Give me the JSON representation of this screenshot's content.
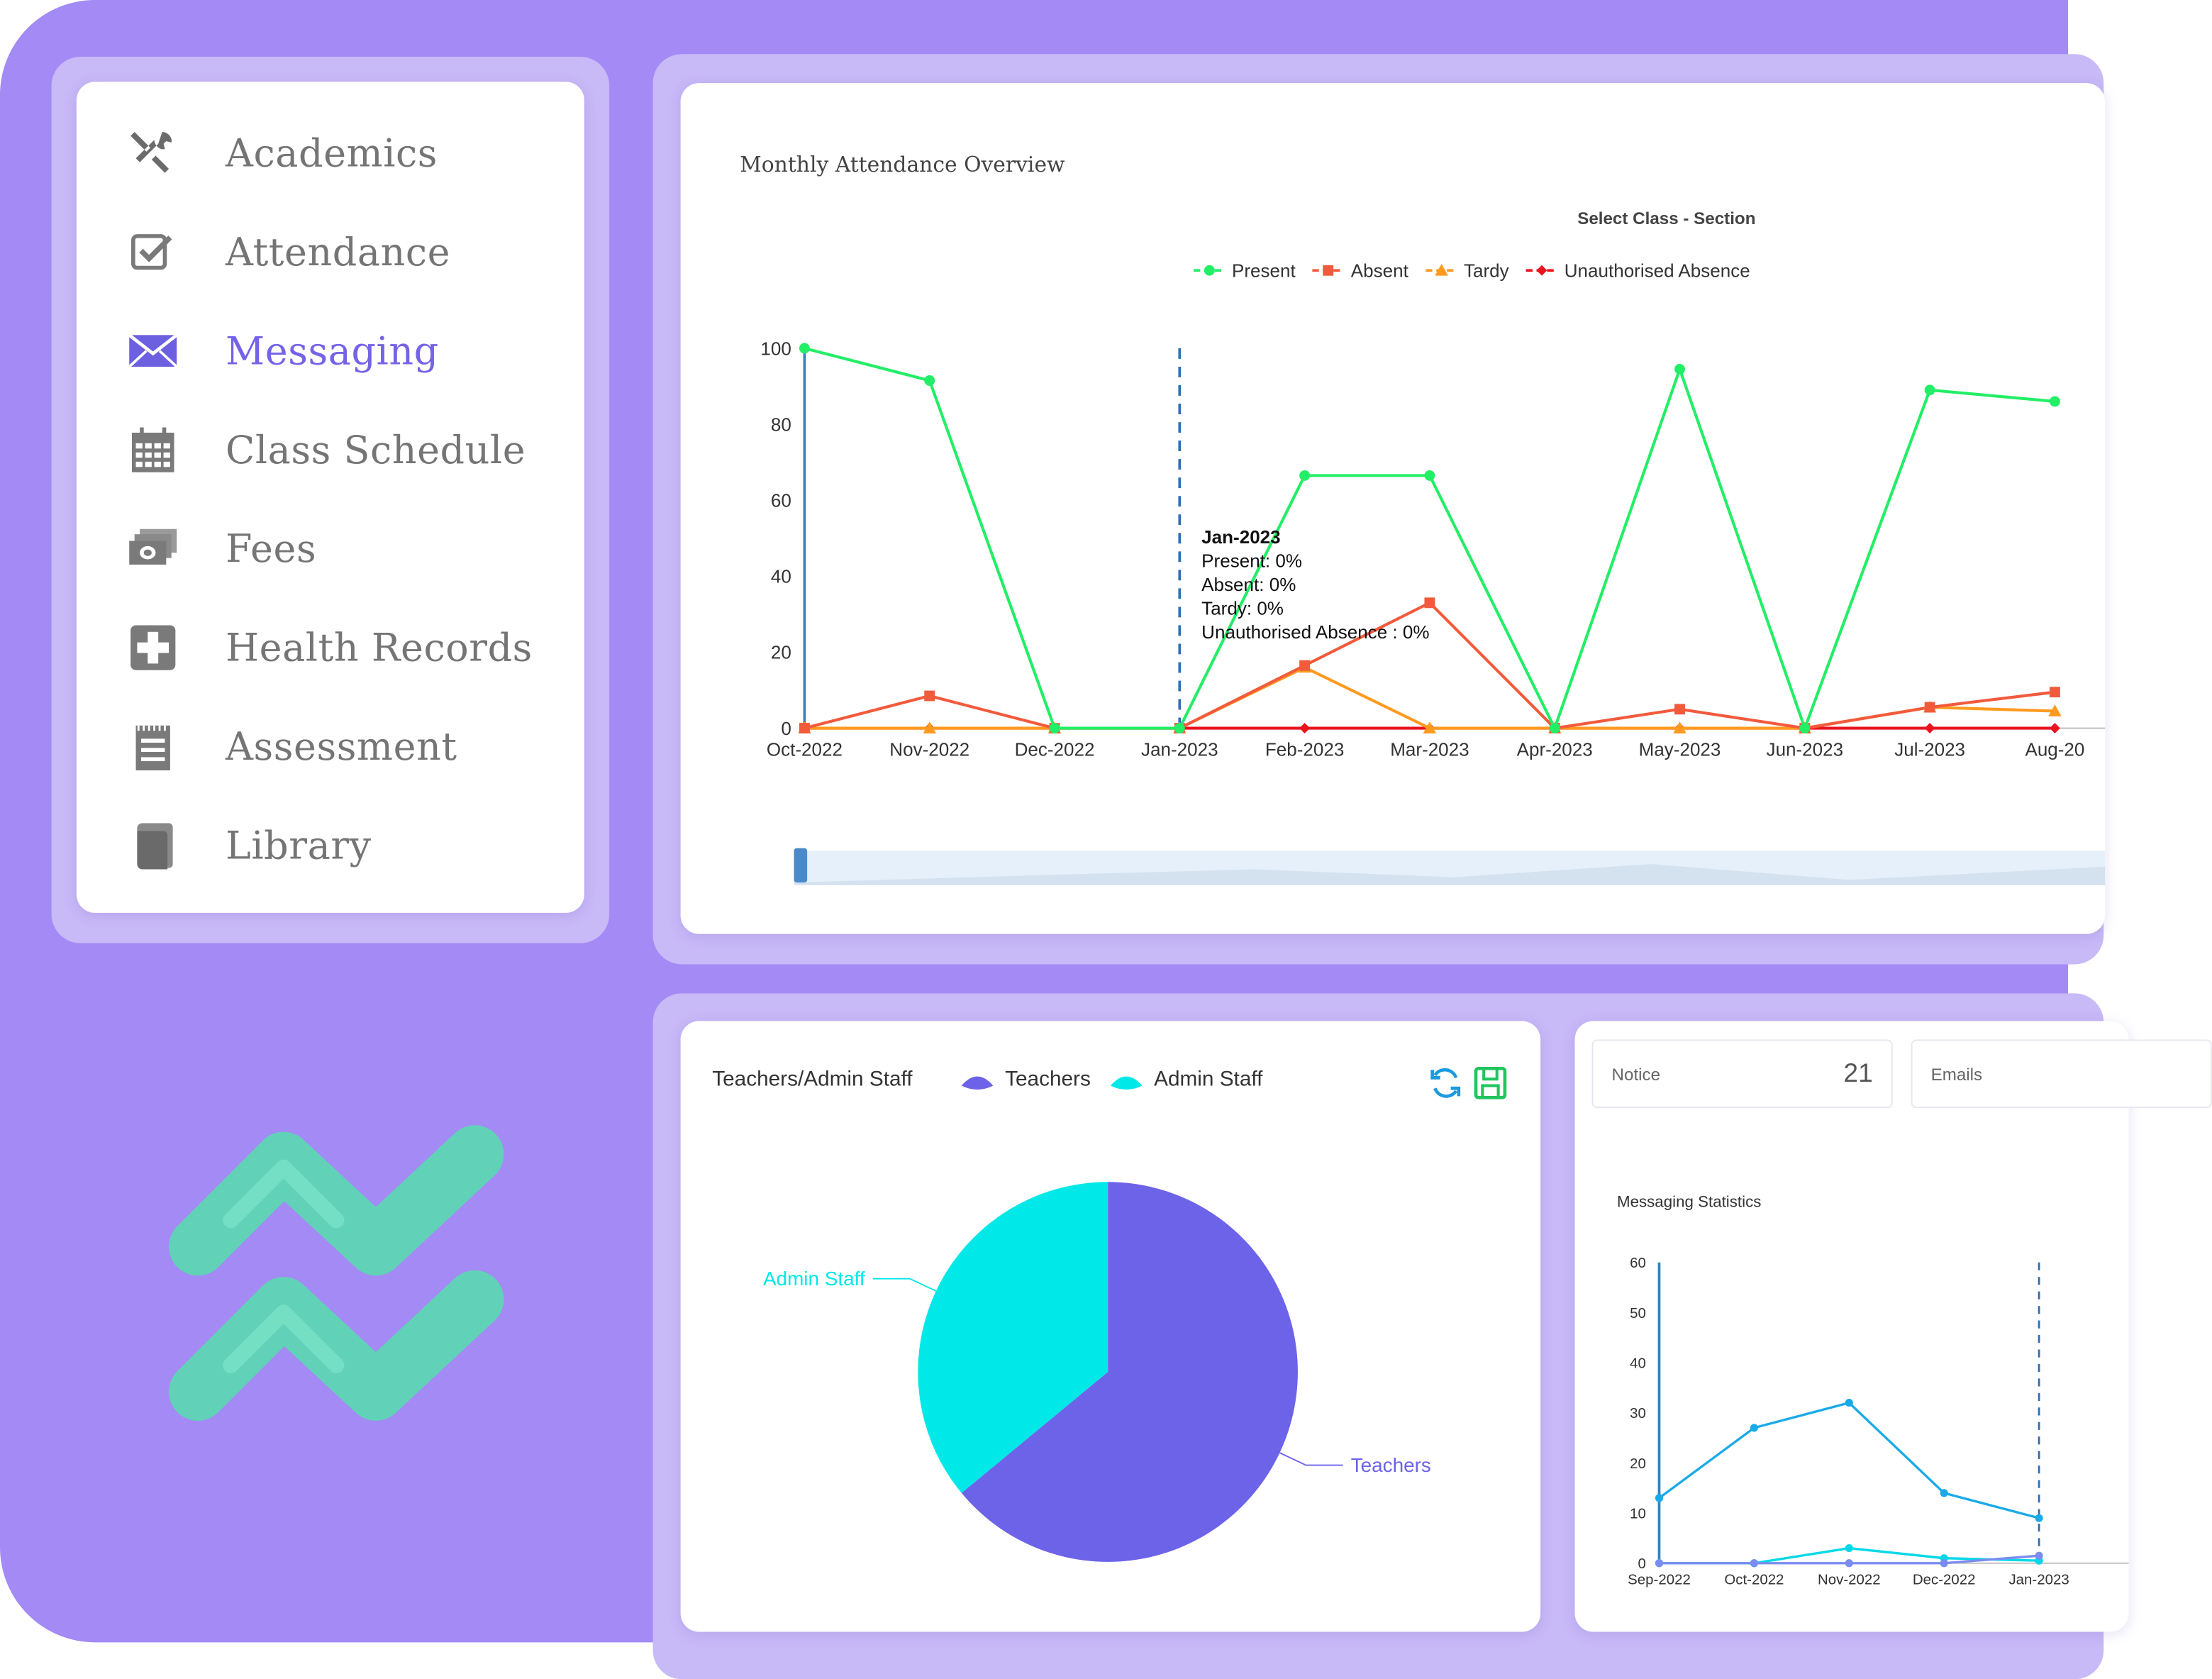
{
  "sidebar": {
    "items": [
      {
        "label": "Academics",
        "icon": "tools-icon"
      },
      {
        "label": "Attendance",
        "icon": "checkbox-icon"
      },
      {
        "label": "Messaging",
        "icon": "envelope-icon",
        "active": true
      },
      {
        "label": "Class Schedule",
        "icon": "calendar-icon"
      },
      {
        "label": "Fees",
        "icon": "money-icon"
      },
      {
        "label": "Health Records",
        "icon": "medical-cross-icon"
      },
      {
        "label": "Assessment",
        "icon": "notepad-icon"
      },
      {
        "label": "Library",
        "icon": "book-icon"
      }
    ]
  },
  "colors": {
    "accent": "#7463e8",
    "background": "#a38af5",
    "present": "#22ee66",
    "absent": "#f25a3c",
    "tardy": "#ff9a1f",
    "unauthorised": "#e8141e",
    "teachers": "#6c63e8",
    "admin": "#00e8e8",
    "logo": "#5ed6b4"
  },
  "attendance": {
    "title": "Monthly Attendance Overview",
    "class_select": "Select Class - Section",
    "tooltip": {
      "title": "Jan-2023",
      "lines": [
        "Present: 0%",
        "Absent: 0%",
        "Tardy: 0%",
        "Unauthorised Absence : 0%"
      ]
    }
  },
  "staff": {
    "title": "Teachers/Admin Staff",
    "refresh_icon": "refresh-icon",
    "save_icon": "save-icon"
  },
  "messaging": {
    "stats": [
      {
        "label": "Notice",
        "value": "21"
      },
      {
        "label": "Emails",
        "value": ""
      }
    ],
    "title": "Messaging Statistics"
  },
  "chart_data": [
    {
      "type": "line",
      "title": "Monthly Attendance Overview",
      "categories": [
        "Oct-2022",
        "Nov-2022",
        "Dec-2022",
        "Jan-2023",
        "Feb-2023",
        "Mar-2023",
        "Apr-2023",
        "May-2023",
        "Jun-2023",
        "Jul-2023",
        "Aug-20"
      ],
      "ylim": [
        0,
        100
      ],
      "yticks": [
        0,
        20,
        40,
        60,
        80,
        100
      ],
      "legend_position": "top-center",
      "series": [
        {
          "name": "Present",
          "values": [
            100,
            91.5,
            0,
            0,
            66.5,
            66.5,
            0,
            94.5,
            0,
            89,
            86
          ]
        },
        {
          "name": "Absent",
          "values": [
            0,
            8.5,
            0,
            0,
            16.5,
            33,
            0,
            5,
            0,
            5.5,
            9.5
          ]
        },
        {
          "name": "Tardy",
          "values": [
            0,
            0,
            0,
            0,
            16,
            0,
            0,
            0,
            0,
            5.5,
            4.5
          ]
        },
        {
          "name": "Unauthorised Absence",
          "values": [
            0,
            0,
            0,
            0,
            0,
            0,
            0,
            0,
            0,
            0,
            0
          ]
        }
      ],
      "highlight_category": "Jan-2023"
    },
    {
      "type": "pie",
      "title": "Teachers/Admin Staff",
      "series": [
        {
          "name": "Teachers",
          "value": 64
        },
        {
          "name": "Admin Staff",
          "value": 36
        }
      ],
      "legend_position": "top"
    },
    {
      "type": "line",
      "title": "Messaging Statistics",
      "categories": [
        "Sep-2022",
        "Oct-2022",
        "Nov-2022",
        "Dec-2022",
        "Jan-2023"
      ],
      "ylim": [
        0,
        60
      ],
      "yticks": [
        0,
        10,
        20,
        30,
        40,
        50,
        60
      ],
      "series": [
        {
          "values": [
            13,
            27,
            32,
            14,
            9
          ]
        },
        {
          "values": [
            0,
            0,
            3,
            1,
            0.5
          ]
        },
        {
          "values": [
            0,
            0,
            0,
            0,
            1.5
          ]
        }
      ],
      "highlight_category": "Jan-2023"
    }
  ]
}
